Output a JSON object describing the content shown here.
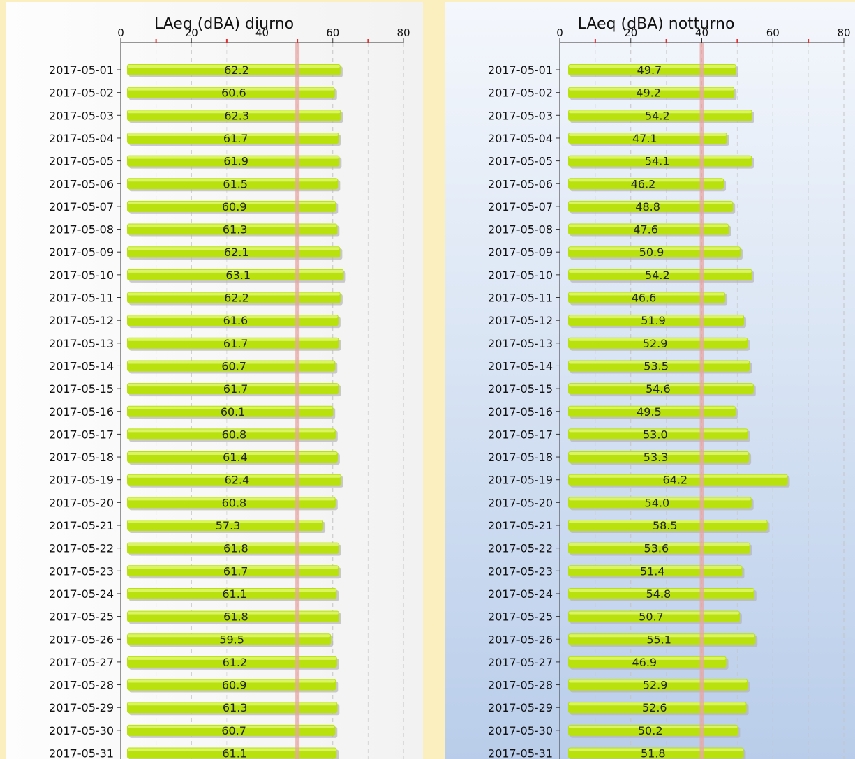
{
  "colors": {
    "bar": "#b8e10e",
    "bar_highlight": "#e4f97a",
    "bar_shadow": "#b5b5b5",
    "limit_line": "#e8a4a4",
    "grid": "#c4c4c4",
    "minor_tick": "#e03030",
    "axis": "#333333"
  },
  "chart_data": [
    {
      "type": "bar",
      "orientation": "horizontal",
      "title": "LAeq (dBA) diurno",
      "xlim": [
        0,
        80
      ],
      "xticks": [
        0,
        20,
        40,
        60,
        80
      ],
      "minor_ticks": [
        10,
        30,
        50,
        70
      ],
      "reference_line": 50,
      "grid": true,
      "categories": [
        "2017-05-01",
        "2017-05-02",
        "2017-05-03",
        "2017-05-04",
        "2017-05-05",
        "2017-05-06",
        "2017-05-07",
        "2017-05-08",
        "2017-05-09",
        "2017-05-10",
        "2017-05-11",
        "2017-05-12",
        "2017-05-13",
        "2017-05-14",
        "2017-05-15",
        "2017-05-16",
        "2017-05-17",
        "2017-05-18",
        "2017-05-19",
        "2017-05-20",
        "2017-05-21",
        "2017-05-22",
        "2017-05-23",
        "2017-05-24",
        "2017-05-25",
        "2017-05-26",
        "2017-05-27",
        "2017-05-28",
        "2017-05-29",
        "2017-05-30",
        "2017-05-31"
      ],
      "values": [
        62.2,
        60.6,
        62.3,
        61.7,
        61.9,
        61.5,
        60.9,
        61.3,
        62.1,
        63.1,
        62.2,
        61.6,
        61.7,
        60.7,
        61.7,
        60.1,
        60.8,
        61.4,
        62.4,
        60.8,
        57.3,
        61.8,
        61.7,
        61.1,
        61.8,
        59.5,
        61.2,
        60.9,
        61.3,
        60.7,
        61.1
      ],
      "labels": [
        "62.2",
        "60.6",
        "62.3",
        "61.7",
        "61.9",
        "61.5",
        "60.9",
        "61.3",
        "62.1",
        "63.1",
        "62.2",
        "61.6",
        "61.7",
        "60.7",
        "61.7",
        "60.1",
        "60.8",
        "61.4",
        "62.4",
        "60.8",
        "57.3",
        "61.8",
        "61.7",
        "61.1",
        "61.8",
        "59.5",
        "61.2",
        "60.9",
        "61.3",
        "60.7",
        "61.1"
      ]
    },
    {
      "type": "bar",
      "orientation": "horizontal",
      "title": "LAeq (dBA) notturno",
      "xlim": [
        0,
        80
      ],
      "xticks": [
        0,
        20,
        40,
        60,
        80
      ],
      "minor_ticks": [
        10,
        30,
        50,
        70
      ],
      "reference_line": 40,
      "grid": true,
      "categories": [
        "2017-05-01",
        "2017-05-02",
        "2017-05-03",
        "2017-05-04",
        "2017-05-05",
        "2017-05-06",
        "2017-05-07",
        "2017-05-08",
        "2017-05-09",
        "2017-05-10",
        "2017-05-11",
        "2017-05-12",
        "2017-05-13",
        "2017-05-14",
        "2017-05-15",
        "2017-05-16",
        "2017-05-17",
        "2017-05-18",
        "2017-05-19",
        "2017-05-20",
        "2017-05-21",
        "2017-05-22",
        "2017-05-23",
        "2017-05-24",
        "2017-05-25",
        "2017-05-26",
        "2017-05-27",
        "2017-05-28",
        "2017-05-29",
        "2017-05-30",
        "2017-05-31"
      ],
      "values": [
        49.7,
        49.2,
        54.2,
        47.1,
        54.1,
        46.2,
        48.8,
        47.6,
        50.9,
        54.2,
        46.6,
        51.9,
        52.9,
        53.5,
        54.6,
        49.5,
        53.0,
        53.3,
        64.2,
        54.0,
        58.5,
        53.6,
        51.4,
        54.8,
        50.7,
        55.1,
        46.9,
        52.9,
        52.6,
        50.2,
        51.8
      ],
      "labels": [
        "49.7",
        "49.2",
        "54.2",
        "47.1",
        "54.1",
        "46.2",
        "48.8",
        "47.6",
        "50.9",
        "54.2",
        "46.6",
        "51.9",
        "52.9",
        "53.5",
        "54.6",
        "49.5",
        "53.0",
        "53.3",
        "64.2",
        "54.0",
        "58.5",
        "53.6",
        "51.4",
        "54.8",
        "50.7",
        "55.1",
        "46.9",
        "52.9",
        "52.6",
        "50.2",
        "51.8"
      ]
    }
  ]
}
